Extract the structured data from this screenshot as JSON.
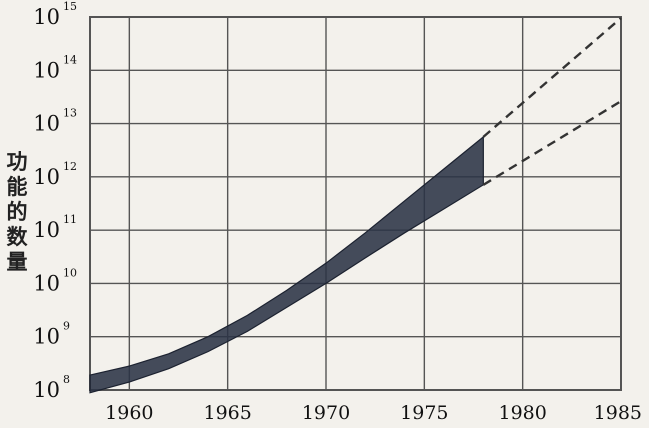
{
  "chart_data": {
    "type": "area",
    "title": "",
    "xlabel": "",
    "ylabel": "功能的数量",
    "y_scale": "log10",
    "xlim": [
      1958,
      1985
    ],
    "ylim_exponents": [
      8,
      15
    ],
    "x_ticks": [
      {
        "label": "1960",
        "value": 1960
      },
      {
        "label": "1965",
        "value": 1965
      },
      {
        "label": "1970",
        "value": 1970
      },
      {
        "label": "1975",
        "value": 1975
      },
      {
        "label": "1980",
        "value": 1980
      },
      {
        "label": "1985",
        "value": 1985
      }
    ],
    "y_ticks": [
      {
        "base": "10",
        "exp": "8",
        "value_exp": 8
      },
      {
        "base": "10",
        "exp": "9",
        "value_exp": 9
      },
      {
        "base": "10",
        "exp": "10",
        "value_exp": 10
      },
      {
        "base": "10",
        "exp": "11",
        "value_exp": 11
      },
      {
        "base": "10",
        "exp": "12",
        "value_exp": 12
      },
      {
        "base": "10",
        "exp": "13",
        "value_exp": 13
      },
      {
        "base": "10",
        "exp": "14",
        "value_exp": 14
      },
      {
        "base": "10",
        "exp": "15",
        "value_exp": 15
      }
    ],
    "grid": true,
    "band": {
      "x": [
        1958,
        1960,
        1962,
        1964,
        1966,
        1968,
        1970,
        1972,
        1974,
        1976,
        1978
      ],
      "upper": [
        8.28,
        8.45,
        8.68,
        9.0,
        9.4,
        9.87,
        10.38,
        10.95,
        11.55,
        12.15,
        12.75
      ],
      "lower": [
        7.95,
        8.15,
        8.4,
        8.72,
        9.1,
        9.55,
        10.0,
        10.48,
        10.95,
        11.4,
        11.85
      ]
    },
    "projections": [
      {
        "x": [
          1978,
          1985
        ],
        "y_exp": [
          12.75,
          14.98
        ]
      },
      {
        "x": [
          1978,
          1985
        ],
        "y_exp": [
          11.85,
          13.42
        ]
      }
    ],
    "colors": {
      "background": "#f3f1ec",
      "grid": "#555555",
      "band_fill": "#2b3346",
      "projection": "#333333"
    }
  }
}
